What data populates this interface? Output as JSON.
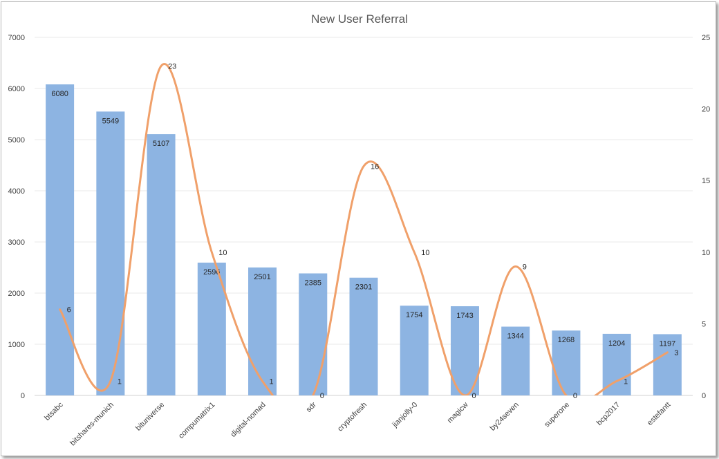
{
  "chart_data": {
    "type": "bar",
    "title": "New User Referral",
    "categories": [
      "btsabc",
      "bitshares-munich",
      "bituniverse",
      "compumatrix1",
      "digital-nomad",
      "sdr",
      "cryptofresh",
      "jianjolly-0",
      "magicw",
      "by24seven",
      "superone",
      "bcp2017",
      "estefantt"
    ],
    "series": [
      {
        "type": "bar",
        "axis": "left",
        "values": [
          6080,
          5549,
          5107,
          2596,
          2501,
          2385,
          2301,
          1754,
          1743,
          1344,
          1268,
          1204,
          1197
        ]
      },
      {
        "type": "line",
        "smooth": true,
        "axis": "right",
        "values": [
          6,
          1,
          23,
          10,
          1,
          0,
          16,
          10,
          0,
          9,
          0,
          1,
          3
        ]
      }
    ],
    "y_left": {
      "min": 0,
      "max": 7000,
      "ticks": [
        0,
        1000,
        2000,
        3000,
        4000,
        5000,
        6000,
        7000
      ]
    },
    "y_right": {
      "min": 0,
      "max": 25,
      "ticks": [
        0,
        5,
        10,
        15,
        20,
        25
      ]
    },
    "grid": true,
    "legend": "none",
    "colors": {
      "bar": "#8db4e2",
      "line": "#f0a06a",
      "grid": "#e8e8e8"
    }
  }
}
